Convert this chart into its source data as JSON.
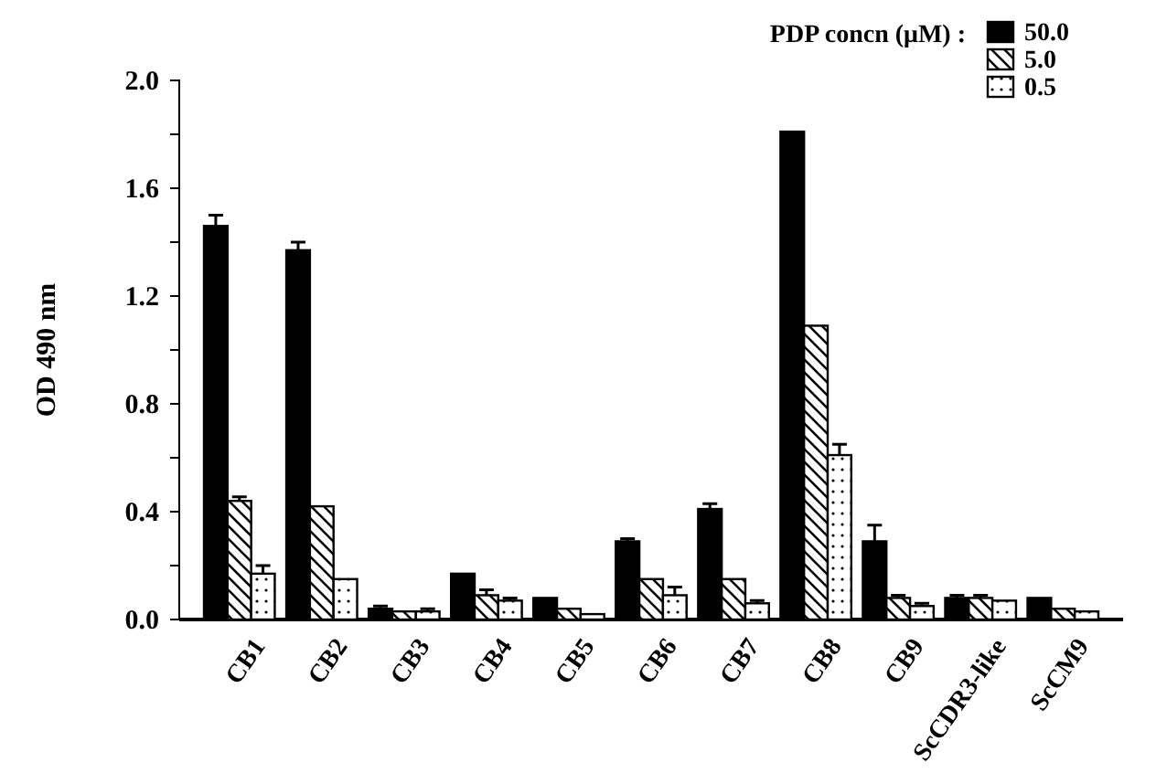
{
  "chart_data": {
    "type": "bar",
    "ylabel": "OD 490 nm",
    "legend_title": "PDP concn (μM) :",
    "legend": "top right",
    "categories": [
      "CB1",
      "CB2",
      "CB3",
      "CB4",
      "CB5",
      "CB6",
      "CB7",
      "CB8",
      "CB9",
      "ScCDR3-like",
      "ScCM9"
    ],
    "series": [
      {
        "name": "50.0",
        "color": "#000000",
        "values": [
          1.46,
          1.37,
          0.04,
          0.17,
          0.08,
          0.29,
          0.41,
          1.81,
          0.29,
          0.08,
          0.08
        ],
        "errors": [
          0.04,
          0.03,
          0.01,
          null,
          null,
          0.01,
          0.02,
          null,
          0.06,
          0.01,
          null
        ]
      },
      {
        "name": "5.0",
        "color": "#000000",
        "values": [
          0.44,
          0.42,
          0.03,
          0.09,
          0.04,
          0.15,
          0.15,
          1.09,
          0.08,
          0.08,
          0.04
        ],
        "errors": [
          0.015,
          null,
          null,
          0.02,
          null,
          null,
          null,
          null,
          0.01,
          0.01,
          null
        ]
      },
      {
        "name": "0.5",
        "color": "#000000",
        "values": [
          0.17,
          0.15,
          0.03,
          0.07,
          0.02,
          0.09,
          0.06,
          0.61,
          0.05,
          0.07,
          0.03
        ],
        "errors": [
          0.03,
          null,
          0.01,
          0.01,
          null,
          0.03,
          0.01,
          0.04,
          0.01,
          null,
          null
        ]
      }
    ],
    "ylim": [
      0,
      2.0
    ],
    "yticks": [
      {
        "value": 0,
        "label": "0.0"
      },
      {
        "value": 0.2,
        "label": null
      },
      {
        "value": 0.4,
        "label": "0.4"
      },
      {
        "value": 0.6,
        "label": null
      },
      {
        "value": 0.8,
        "label": "0.8"
      },
      {
        "value": 1.0,
        "label": null
      },
      {
        "value": 1.2,
        "label": "1.2"
      },
      {
        "value": 1.4,
        "label": null
      },
      {
        "value": 1.6,
        "label": "1.6"
      },
      {
        "value": 1.8,
        "label": null
      },
      {
        "value": 2.0,
        "label": "2.0"
      }
    ],
    "grid": false
  }
}
